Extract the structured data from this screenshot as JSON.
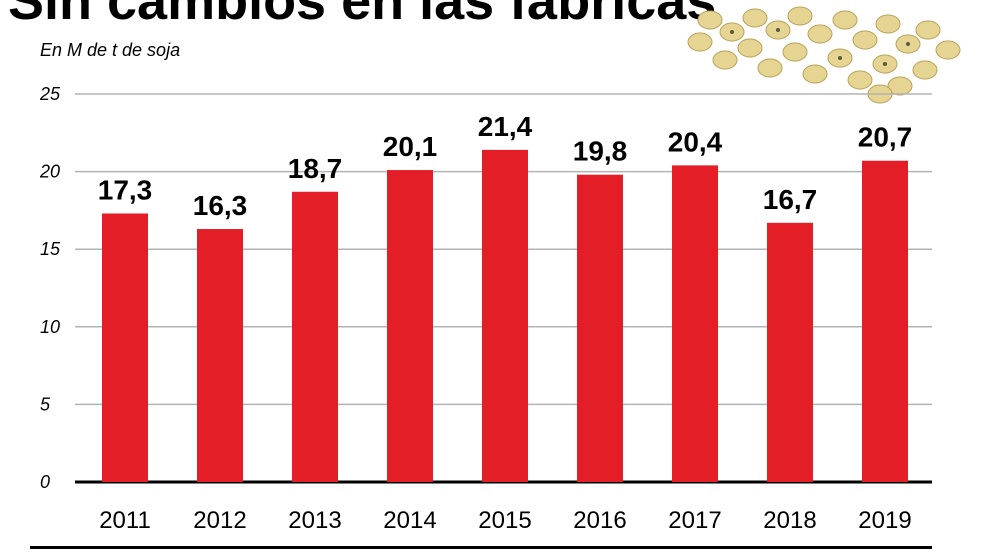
{
  "title": "Sin cambios en las fábricas",
  "unit_label": "En M de t de soja",
  "colors": {
    "bar": "#e41e26",
    "grid": "#b3b3b3",
    "axis": "#000000",
    "bean": "#e8d79a"
  },
  "image": {
    "icon": "soybeans-illustration"
  },
  "chart_data": {
    "type": "bar",
    "title": "Sin cambios en las fábricas",
    "ylabel": "En M de t de soja",
    "xlabel": "",
    "categories": [
      "2011",
      "2012",
      "2013",
      "2014",
      "2015",
      "2016",
      "2017",
      "2018",
      "2019"
    ],
    "values": [
      17.3,
      16.3,
      18.7,
      20.1,
      21.4,
      19.8,
      20.4,
      16.7,
      20.7
    ],
    "value_labels": [
      "17,3",
      "16,3",
      "18,7",
      "20,1",
      "21,4",
      "19,8",
      "20,4",
      "16,7",
      "20,7"
    ],
    "ylim": [
      0,
      25
    ],
    "yticks": [
      0,
      5,
      10,
      15,
      20,
      25
    ],
    "grid": true,
    "legend": "none"
  }
}
